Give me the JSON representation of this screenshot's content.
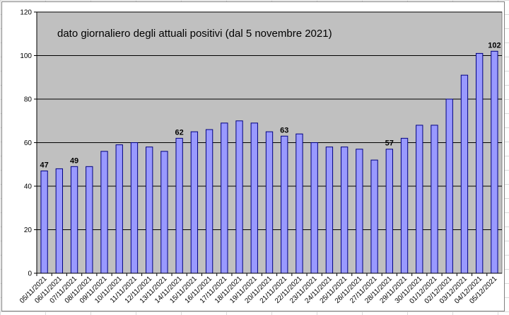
{
  "chart_data": {
    "type": "bar",
    "title": "dato giornaliero degli attuali positivi (dal 5 novembre 2021)",
    "xlabel": "",
    "ylabel": "",
    "ylim": [
      0,
      120
    ],
    "yticks": [
      0,
      20,
      40,
      60,
      80,
      100,
      120
    ],
    "grid": true,
    "categories": [
      "05/11/2021",
      "06/11/2021",
      "07/11/2021",
      "08/11/2021",
      "09/11/2021",
      "10/11/2021",
      "11/11/2021",
      "12/11/2021",
      "13/11/2021",
      "14/11/2021",
      "15/11/2021",
      "16/11/2021",
      "17/11/2021",
      "18/11/2021",
      "19/11/2021",
      "20/11/2021",
      "21/11/2021",
      "22/11/2021",
      "23/11/2021",
      "24/11/2021",
      "25/11/2021",
      "26/11/2021",
      "27/11/2021",
      "28/11/2021",
      "29/11/2021",
      "30/11/2021",
      "01/12/2021",
      "02/12/2021",
      "03/12/2021",
      "04/12/2021",
      "05/12/2021"
    ],
    "values": [
      47,
      48,
      49,
      49,
      56,
      59,
      60,
      58,
      56,
      62,
      65,
      66,
      69,
      70,
      69,
      65,
      63,
      64,
      60,
      58,
      58,
      57,
      52,
      57,
      62,
      68,
      68,
      80,
      91,
      101,
      102
    ],
    "data_labels": [
      {
        "index": 0,
        "text": "47"
      },
      {
        "index": 2,
        "text": "49"
      },
      {
        "index": 9,
        "text": "62"
      },
      {
        "index": 16,
        "text": "63"
      },
      {
        "index": 23,
        "text": "57"
      },
      {
        "index": 30,
        "text": "102"
      }
    ],
    "colors": {
      "plot_background": "#c0c0c0",
      "bar_fill": "#9999ff",
      "bar_stroke": "#000080",
      "gridline": "#000000"
    }
  }
}
